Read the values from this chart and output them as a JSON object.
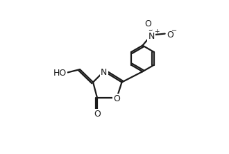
{
  "bg_color": "#ffffff",
  "line_color": "#1a1a1a",
  "line_width": 1.6,
  "fig_width": 3.3,
  "fig_height": 2.22,
  "dpi": 100,
  "xlim": [
    -1.8,
    2.6
  ],
  "ylim": [
    -1.6,
    2.4
  ]
}
